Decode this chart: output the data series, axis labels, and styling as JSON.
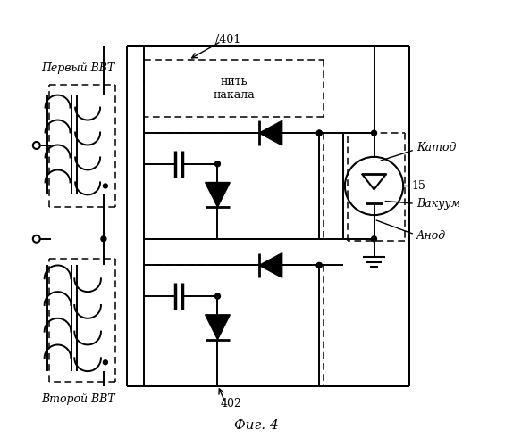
{
  "title": "Фиг. 4",
  "label_401": "/401",
  "label_402": "402",
  "label_15": "15",
  "label_first_vvt": "Первый ВВТ",
  "label_second_vvt": "Второй ВВТ",
  "label_cathode": "Катод",
  "label_vacuum": "Вакуум",
  "label_anode": "Анод",
  "label_filament": "нить\nнакала",
  "bg_color": "#ffffff"
}
